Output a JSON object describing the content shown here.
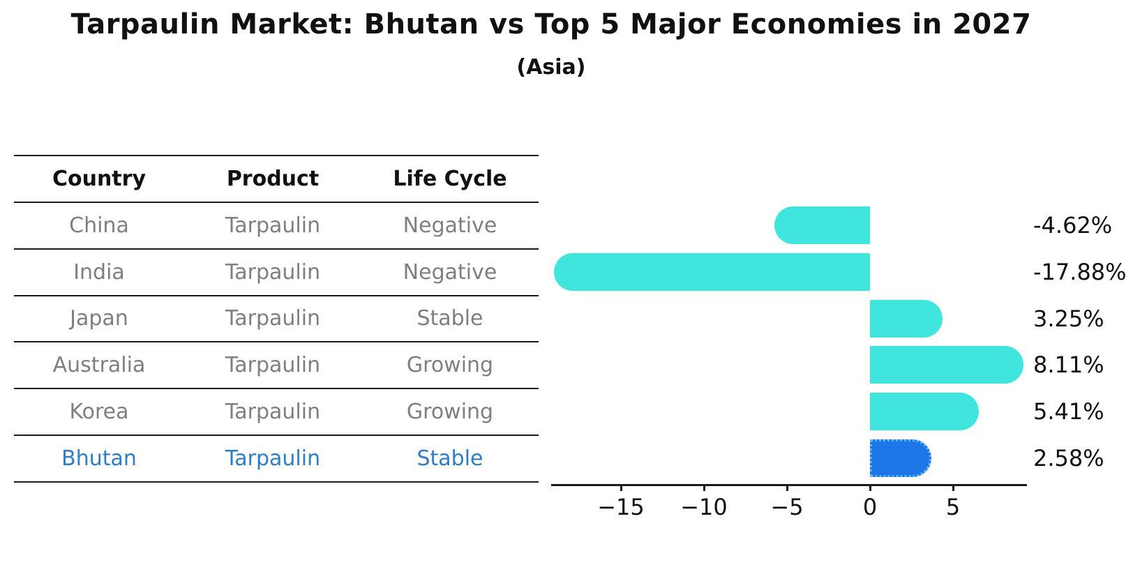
{
  "table": {
    "headers": [
      "Country",
      "Product",
      "Life Cycle"
    ],
    "rows": [
      {
        "country": "China",
        "product": "Tarpaulin",
        "life_cycle": "Negative",
        "highlight": false
      },
      {
        "country": "India",
        "product": "Tarpaulin",
        "life_cycle": "Negative",
        "highlight": false
      },
      {
        "country": "Japan",
        "product": "Tarpaulin",
        "life_cycle": "Stable",
        "highlight": false
      },
      {
        "country": "Australia",
        "product": "Tarpaulin",
        "life_cycle": "Growing",
        "highlight": false
      },
      {
        "country": "Korea",
        "product": "Tarpaulin",
        "life_cycle": "Growing",
        "highlight": false
      },
      {
        "country": "Bhutan",
        "product": "Tarpaulin",
        "life_cycle": "Stable",
        "highlight": true
      }
    ]
  },
  "chart_data": {
    "type": "bar",
    "orientation": "horizontal",
    "title": "Tarpaulin Market: Bhutan vs Top 5 Major Economies in 2027",
    "subtitle": "(Asia)",
    "categories": [
      "China",
      "India",
      "Japan",
      "Australia",
      "Korea",
      "Bhutan"
    ],
    "values": [
      -4.62,
      -17.88,
      3.25,
      8.11,
      5.41,
      2.58
    ],
    "value_labels": [
      "-4.62%",
      "-17.88%",
      "3.25%",
      "8.11%",
      "5.41%",
      "2.58%"
    ],
    "xticks": [
      -15,
      -10,
      -5,
      0,
      5
    ],
    "xtick_labels": [
      "−15",
      "−10",
      "−5",
      "0",
      "5"
    ],
    "xlim": [
      -19.2,
      9.5
    ],
    "grid": false,
    "legend": false,
    "bar_color": "#40E6DE",
    "highlight_category": "Bhutan",
    "highlight_bar_color": "#1C76E8",
    "highlight_border_color": "#5FB6F0",
    "highlight_text_color": "#2D7DC8",
    "axis_color": "#1a1a1a"
  }
}
